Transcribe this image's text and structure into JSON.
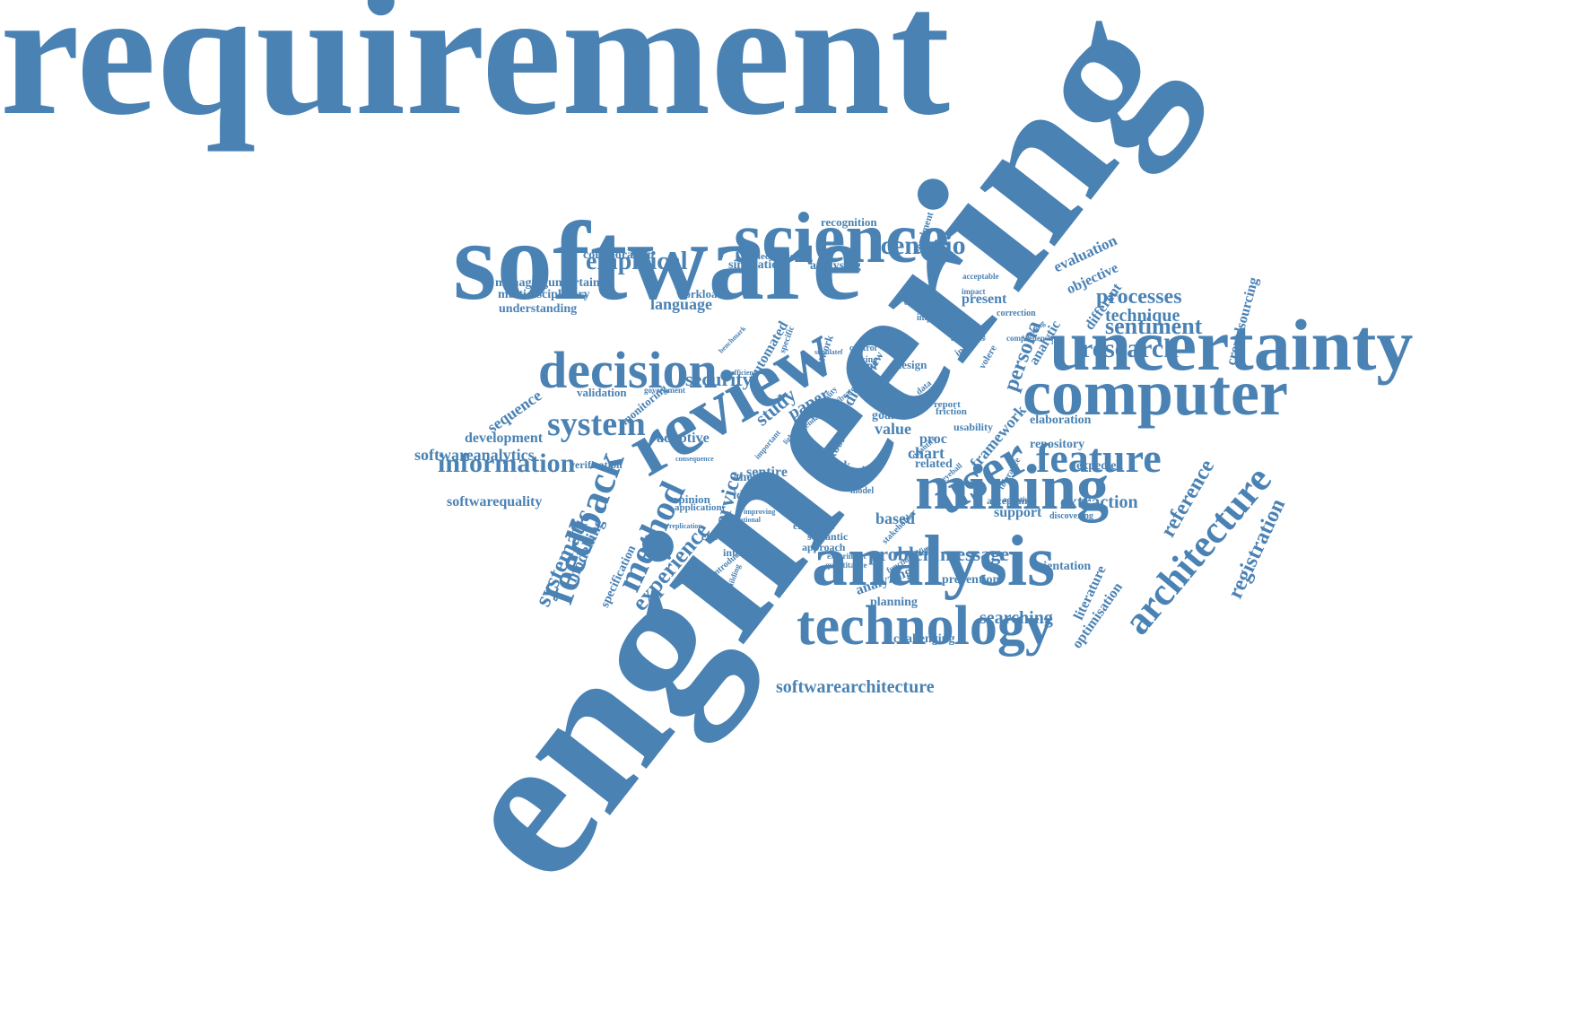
{
  "word_cloud": {
    "color": "#4a82b4",
    "background": "#ffffff",
    "words": [
      "requirement",
      "engineering",
      "software",
      "science",
      "uncertainty",
      "computer",
      "decision",
      "review",
      "mining",
      "analysis",
      "technology",
      "feature",
      "user",
      "information",
      "system",
      "empirical",
      "scenario",
      "research",
      "sentiment",
      "processes",
      "technique",
      "security",
      "extraction",
      "feedback",
      "method",
      "architecture",
      "experience",
      "reference",
      "registration",
      "crowdsourcing",
      "systematic",
      "modelling",
      "specification",
      "literature",
      "optimisation",
      "problem",
      "message",
      "searching",
      "softwarearchitecture",
      "softwareanalytics",
      "softwarequality",
      "development",
      "sequence",
      "validation",
      "monitoring",
      "language",
      "workload",
      "collaboration",
      "simulation",
      "electronic",
      "analysing",
      "recognition",
      "enrolment",
      "evaluation",
      "objective",
      "different",
      "present",
      "managinguncertainty",
      "multidisciplinary",
      "understanding",
      "study",
      "paper",
      "persona",
      "analytic",
      "adaptive",
      "verification",
      "sentire",
      "theory",
      "identity",
      "opinion",
      "application",
      "service",
      "engineer",
      "electrical",
      "semantic",
      "approach",
      "interaction",
      "effectiveness",
      "introduction",
      "based",
      "support",
      "orientation",
      "prevention",
      "planning",
      "analyzing",
      "challenging",
      "elaboration",
      "expected",
      "repository",
      "framework",
      "related",
      "chart",
      "proc",
      "value",
      "goal",
      "risk",
      "result",
      "case",
      "model",
      "preview",
      "script",
      "design",
      "making",
      "control",
      "implied",
      "automated",
      "specific",
      "network",
      "studies",
      "tool",
      "volere",
      "industry",
      "activities",
      "correction",
      "discovering",
      "acceptance",
      "tolerance",
      "usability",
      "friction",
      "report",
      "data",
      "article",
      "functionalities",
      "stakeholder",
      "experiment",
      "quantitative",
      "improving",
      "national",
      "replication",
      "consequence",
      "government",
      "efficient",
      "benchmark",
      "important",
      "lightweight",
      "driven",
      "building",
      "impact",
      "acceptable",
      "comprehensive",
      "simulatef",
      "calibrated",
      "punctuality",
      "agenda",
      "crime",
      "eyeball",
      "quantify",
      "faulting",
      "adaptive",
      "compliance",
      "evaluate"
    ]
  }
}
